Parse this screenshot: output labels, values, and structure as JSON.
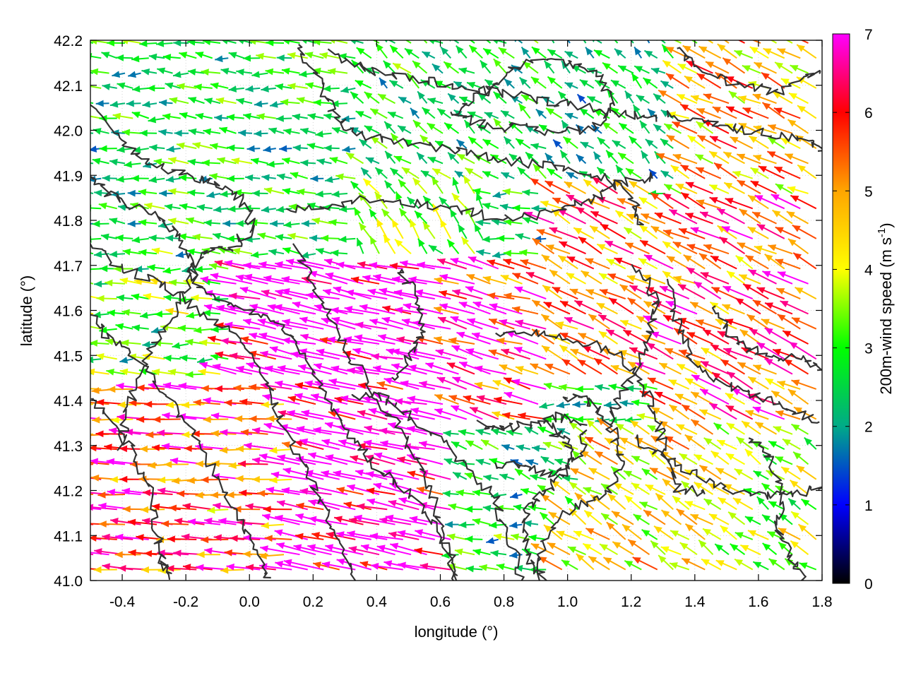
{
  "chart_data": {
    "type": "vector-field",
    "title": "",
    "xlabel": "longitude (°)",
    "ylabel": "latitude (°)",
    "colorbar_label": "200m-wind speed (m s",
    "colorbar_label_sup": "-1",
    "colorbar_label_close": ")",
    "xlim": [
      -0.5,
      1.8
    ],
    "ylim": [
      41.0,
      42.2
    ],
    "x_ticks": [
      -0.4,
      -0.2,
      0.0,
      0.2,
      0.4,
      0.6,
      0.8,
      1.0,
      1.2,
      1.4,
      1.6,
      1.8
    ],
    "x_tick_labels": [
      "-0.4",
      "-0.2",
      "0.0",
      "0.2",
      "0.4",
      "0.6",
      "0.8",
      "1.0",
      "1.2",
      "1.4",
      "1.6",
      "1.8"
    ],
    "y_ticks": [
      41.0,
      41.1,
      41.2,
      41.3,
      41.4,
      41.5,
      41.6,
      41.7,
      41.8,
      41.9,
      42.0,
      42.1,
      42.2
    ],
    "y_tick_labels": [
      "41.0",
      "41.1",
      "41.2",
      "41.3",
      "41.4",
      "41.5",
      "41.6",
      "41.7",
      "41.8",
      "41.9",
      "42.0",
      "42.1",
      "42.2"
    ],
    "colorbar_range": [
      0,
      7
    ],
    "colorbar_ticks": [
      0,
      1,
      2,
      3,
      4,
      5,
      6,
      7
    ],
    "colorbar_tick_labels": [
      "0",
      "1",
      "2",
      "3",
      "4",
      "5",
      "6",
      "7"
    ],
    "colormap_stops": [
      "#000000",
      "#0000ff",
      "#00aa88",
      "#00ff00",
      "#ffff00",
      "#ffa500",
      "#ff0000",
      "#ff00ff"
    ],
    "grid": true,
    "contour_color": "#333333",
    "wind_regions": [
      {
        "lon": [
          -0.5,
          0.35
        ],
        "lat": [
          41.72,
          42.2
        ],
        "u": -2.6,
        "v": 0.25
      },
      {
        "lon": [
          0.35,
          0.95
        ],
        "lat": [
          41.88,
          42.2
        ],
        "u": -2.2,
        "v": 1.6
      },
      {
        "lon": [
          0.95,
          1.35
        ],
        "lat": [
          41.88,
          42.2
        ],
        "u": -1.8,
        "v": 1.5
      },
      {
        "lon": [
          1.35,
          1.8
        ],
        "lat": [
          41.85,
          42.2
        ],
        "u": -4.2,
        "v": 2.1
      },
      {
        "lon": [
          -0.5,
          -0.05
        ],
        "lat": [
          41.45,
          41.72
        ],
        "u": -3.1,
        "v": 0.2
      },
      {
        "lon": [
          -0.5,
          0.15
        ],
        "lat": [
          41.0,
          41.45
        ],
        "u": -5.8,
        "v": 0.3
      },
      {
        "lon": [
          -0.05,
          0.65
        ],
        "lat": [
          41.0,
          41.72
        ],
        "u": -7.5,
        "v": 1.6
      },
      {
        "lon": [
          0.35,
          0.75
        ],
        "lat": [
          41.72,
          41.88
        ],
        "u": -2.0,
        "v": 2.6
      },
      {
        "lon": [
          0.65,
          0.95
        ],
        "lat": [
          41.35,
          41.72
        ],
        "u": -6.0,
        "v": 1.8
      },
      {
        "lon": [
          0.95,
          1.3
        ],
        "lat": [
          41.45,
          41.88
        ],
        "u": -4.6,
        "v": 2.4
      },
      {
        "lon": [
          0.6,
          1.05
        ],
        "lat": [
          41.2,
          41.35
        ],
        "u": -2.4,
        "v": 1.0
      },
      {
        "lon": [
          1.3,
          1.8
        ],
        "lat": [
          41.35,
          41.85
        ],
        "u": -5.0,
        "v": 2.5
      },
      {
        "lon": [
          0.95,
          1.5
        ],
        "lat": [
          41.0,
          41.35
        ],
        "u": -3.6,
        "v": 2.3
      },
      {
        "lon": [
          1.5,
          1.8
        ],
        "lat": [
          41.0,
          41.35
        ],
        "u": -3.0,
        "v": 2.0
      }
    ]
  }
}
